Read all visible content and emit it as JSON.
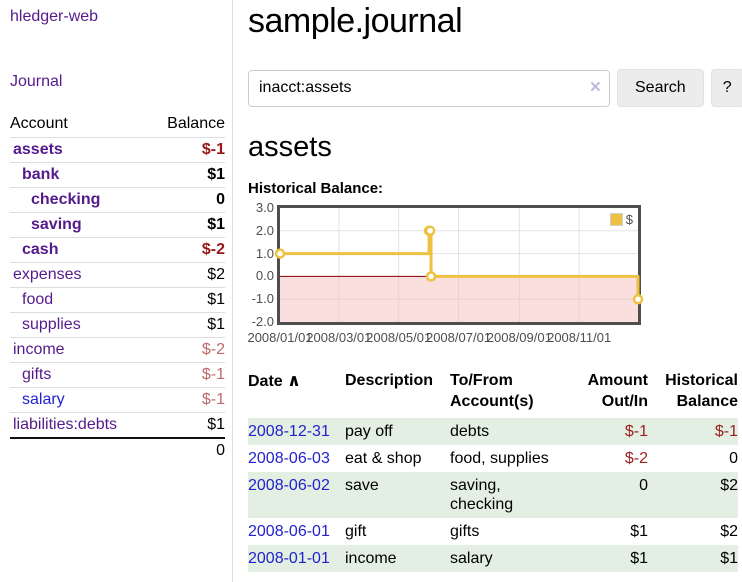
{
  "app": {
    "title": "hledger-web"
  },
  "sidebar": {
    "journal_link": "Journal",
    "table": {
      "headers": {
        "account": "Account",
        "balance": "Balance"
      },
      "rows": [
        {
          "name": "assets",
          "indent": 1,
          "bold": true,
          "balance": "$-1",
          "neg": "strong"
        },
        {
          "name": "bank",
          "indent": 2,
          "bold": true,
          "balance": "$1"
        },
        {
          "name": "checking",
          "indent": 3,
          "bold": true,
          "balance": "0"
        },
        {
          "name": "saving",
          "indent": 3,
          "bold": true,
          "balance": "$1"
        },
        {
          "name": "cash",
          "indent": 2,
          "bold": true,
          "balance": "$-2",
          "neg": "strong"
        },
        {
          "name": "expenses",
          "indent": 1,
          "bold": false,
          "balance": "$2"
        },
        {
          "name": "food",
          "indent": 2,
          "bold": false,
          "balance": "$1"
        },
        {
          "name": "supplies",
          "indent": 2,
          "bold": false,
          "balance": "$1"
        },
        {
          "name": "income",
          "indent": 1,
          "bold": false,
          "balance": "$-2",
          "neg": "weak"
        },
        {
          "name": "gifts",
          "indent": 2,
          "bold": false,
          "balance": "$-1",
          "neg": "weak"
        },
        {
          "name": "salary",
          "indent": 2,
          "bold": false,
          "balance": "$-1",
          "neg": "weak",
          "blue": true
        },
        {
          "name": "liabilities:debts",
          "indent": 1,
          "bold": false,
          "balance": "$1"
        }
      ],
      "total": "0"
    }
  },
  "main": {
    "title": "sample.journal",
    "search": {
      "value": "inacct:assets",
      "clear_icon": "×",
      "button": "Search",
      "help_button": "?"
    },
    "account_heading": "assets",
    "chart_label": "Historical Balance:"
  },
  "chart_data": {
    "type": "line",
    "title": "Historical Balance",
    "step": true,
    "x_axis": {
      "unit": "date",
      "min_day": 0,
      "max_day": 365,
      "ticks": [
        {
          "label": "2008/01/01",
          "day": 0
        },
        {
          "label": "2008/03/01",
          "day": 60
        },
        {
          "label": "2008/05/01",
          "day": 121
        },
        {
          "label": "2008/07/01",
          "day": 182
        },
        {
          "label": "2008/09/01",
          "day": 244
        },
        {
          "label": "2008/11/01",
          "day": 305
        }
      ]
    },
    "y_axis": {
      "min": -2,
      "max": 3,
      "ticks": [
        {
          "label": "3.0",
          "value": 3
        },
        {
          "label": "2.0",
          "value": 2
        },
        {
          "label": "1.0",
          "value": 1
        },
        {
          "label": "0.0",
          "value": 0
        },
        {
          "label": "-1.0",
          "value": -1
        },
        {
          "label": "-2.0",
          "value": -2
        }
      ]
    },
    "series": [
      {
        "name": "$",
        "color": "#edc240",
        "points": [
          {
            "date": "2008-01-01",
            "day": 0,
            "value": 1
          },
          {
            "date": "2008-06-01",
            "day": 152,
            "value": 2
          },
          {
            "date": "2008-06-02",
            "day": 153,
            "value": 2
          },
          {
            "date": "2008-06-03",
            "day": 154,
            "value": 0
          },
          {
            "date": "2008-12-31",
            "day": 365,
            "value": -1
          }
        ]
      }
    ],
    "grid_color": "#e3e3e3",
    "negative_region_color": "#f6b8b8",
    "zero_line_color": "#8b0000",
    "legend": {
      "label": "$",
      "position": "top-right"
    }
  },
  "register": {
    "headers": {
      "date": "Date",
      "sort_icon": "∧",
      "description": "Description",
      "accounts": "To/From Account(s)",
      "amount": "Amount Out/In",
      "balance": "Historical Balance"
    },
    "rows": [
      {
        "date": "2008-12-31",
        "description": "pay off",
        "accounts": "debts",
        "amount": "$-1",
        "amount_neg": true,
        "balance": "$-1",
        "balance_neg": true
      },
      {
        "date": "2008-06-03",
        "description": "eat & shop",
        "accounts": "food, supplies",
        "amount": "$-2",
        "amount_neg": true,
        "balance": "0",
        "balance_neg": false
      },
      {
        "date": "2008-06-02",
        "description": "save",
        "accounts": "saving, checking",
        "amount": "0",
        "amount_neg": false,
        "balance": "$2",
        "balance_neg": false
      },
      {
        "date": "2008-06-01",
        "description": "gift",
        "accounts": "gifts",
        "amount": "$1",
        "amount_neg": false,
        "balance": "$2",
        "balance_neg": false
      },
      {
        "date": "2008-01-01",
        "description": "income",
        "accounts": "salary",
        "amount": "$1",
        "amount_neg": false,
        "balance": "$1",
        "balance_neg": false
      }
    ]
  }
}
